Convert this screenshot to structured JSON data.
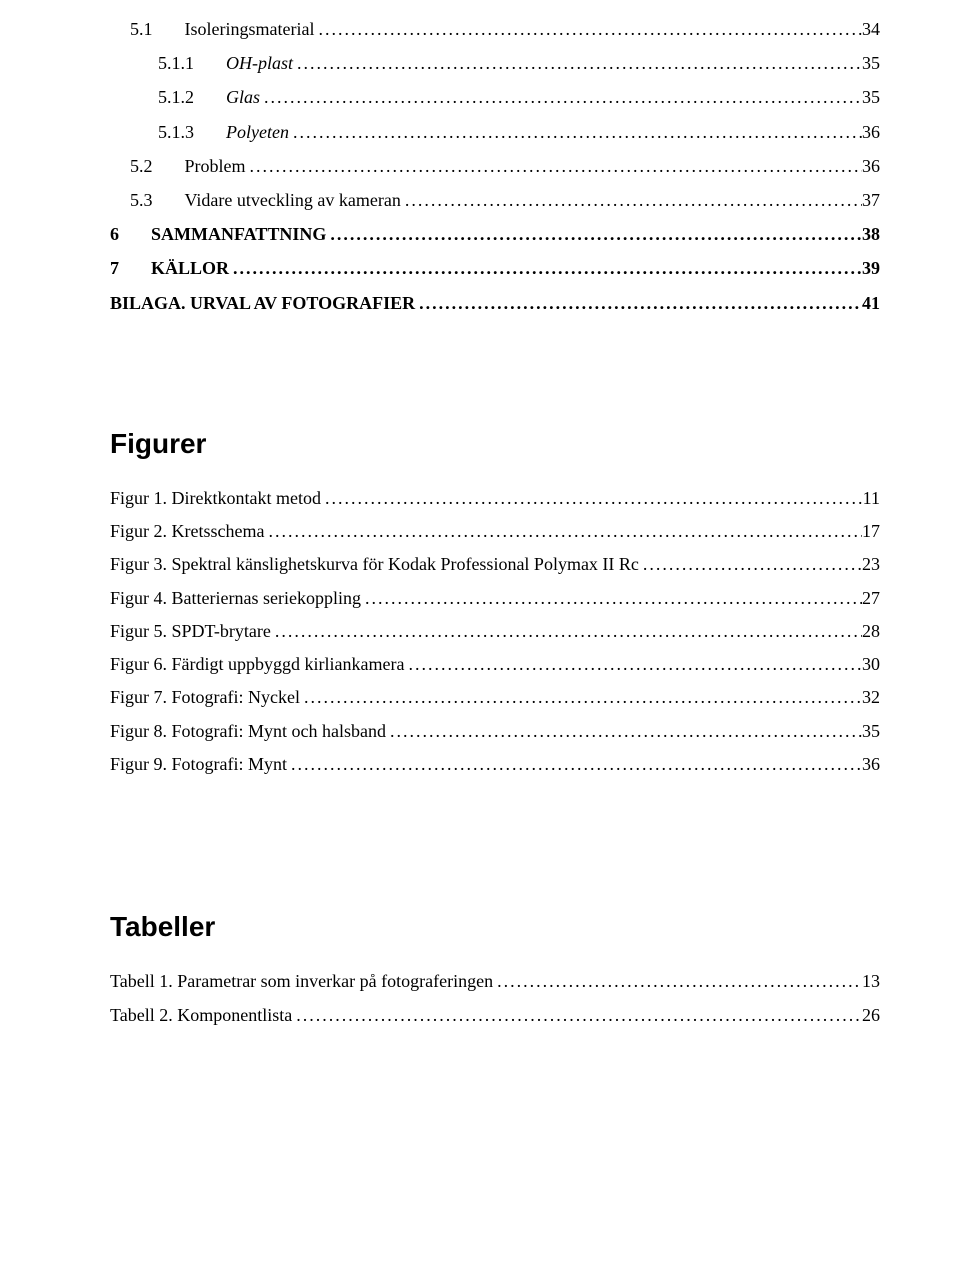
{
  "toc": [
    {
      "num": "5.1",
      "label": "Isoleringsmaterial",
      "page": "34",
      "indent": 1,
      "bold": false,
      "italic": false
    },
    {
      "num": "5.1.1",
      "label": "OH-plast",
      "page": "35",
      "indent": 2,
      "bold": false,
      "italic": true
    },
    {
      "num": "5.1.2",
      "label": "Glas",
      "page": "35",
      "indent": 2,
      "bold": false,
      "italic": true
    },
    {
      "num": "5.1.3",
      "label": "Polyeten",
      "page": "36",
      "indent": 2,
      "bold": false,
      "italic": true
    },
    {
      "num": "5.2",
      "label": "Problem",
      "page": "36",
      "indent": 1,
      "bold": false,
      "italic": false
    },
    {
      "num": "5.3",
      "label": "Vidare utveckling av kameran",
      "page": "37",
      "indent": 1,
      "bold": false,
      "italic": false
    },
    {
      "num": "6",
      "label": "SAMMANFATTNING",
      "page": "38",
      "indent": 0,
      "bold": true,
      "italic": false
    },
    {
      "num": "7",
      "label": "KÄLLOR",
      "page": "39",
      "indent": 0,
      "bold": true,
      "italic": false
    },
    {
      "num": "",
      "label": "BILAGA. URVAL AV FOTOGRAFIER",
      "page": "41",
      "indent": 0,
      "bold": true,
      "italic": false
    }
  ],
  "figures_heading": "Figurer",
  "figures": [
    {
      "label": "Figur 1. Direktkontakt metod",
      "page": "11"
    },
    {
      "label": "Figur 2. Kretsschema",
      "page": "17"
    },
    {
      "label": "Figur 3. Spektral känslighetskurva för Kodak Professional Polymax II Rc",
      "page": "23"
    },
    {
      "label": "Figur 4. Batteriernas seriekoppling",
      "page": "27"
    },
    {
      "label": "Figur 5. SPDT-brytare",
      "page": "28"
    },
    {
      "label": "Figur 6. Färdigt uppbyggd kirliankamera",
      "page": "30"
    },
    {
      "label": "Figur 7. Fotografi: Nyckel",
      "page": "32"
    },
    {
      "label": "Figur 8. Fotografi: Mynt och halsband",
      "page": "35"
    },
    {
      "label": "Figur 9. Fotografi: Mynt",
      "page": "36"
    }
  ],
  "tables_heading": "Tabeller",
  "tables": [
    {
      "label": "Tabell 1. Parametrar som inverkar på fotograferingen",
      "page": "13"
    },
    {
      "label": "Tabell 2. Komponentlista",
      "page": "26"
    }
  ]
}
